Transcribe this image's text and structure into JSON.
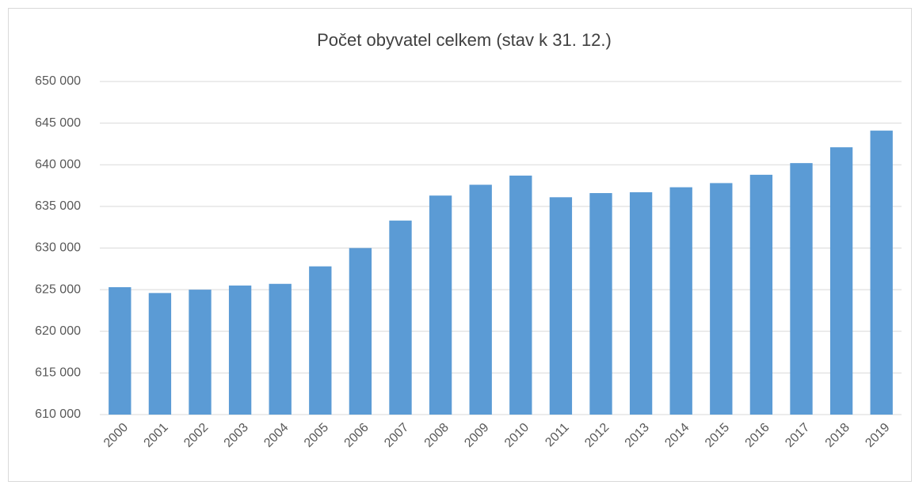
{
  "chart_data": {
    "type": "bar",
    "title": "Počet obyvatel celkem (stav k 31. 12.)",
    "categories": [
      "2000",
      "2001",
      "2002",
      "2003",
      "2004",
      "2005",
      "2006",
      "2007",
      "2008",
      "2009",
      "2010",
      "2011",
      "2012",
      "2013",
      "2014",
      "2015",
      "2016",
      "2017",
      "2018",
      "2019"
    ],
    "values": [
      625300,
      624600,
      625000,
      625500,
      625700,
      627800,
      630000,
      633300,
      636300,
      637600,
      638700,
      636100,
      636600,
      636700,
      637300,
      637800,
      638800,
      640200,
      642100,
      644100
    ],
    "color": "#5b9bd5",
    "ylim": [
      610000,
      650000
    ],
    "yticks": [
      {
        "value": 610000,
        "label": "610 000"
      },
      {
        "value": 615000,
        "label": "615 000"
      },
      {
        "value": 620000,
        "label": "620 000"
      },
      {
        "value": 625000,
        "label": "625 000"
      },
      {
        "value": 630000,
        "label": "630 000"
      },
      {
        "value": 635000,
        "label": "635 000"
      },
      {
        "value": 640000,
        "label": "640 000"
      },
      {
        "value": 645000,
        "label": "645 000"
      },
      {
        "value": 650000,
        "label": "650 000"
      }
    ],
    "grid": true
  }
}
